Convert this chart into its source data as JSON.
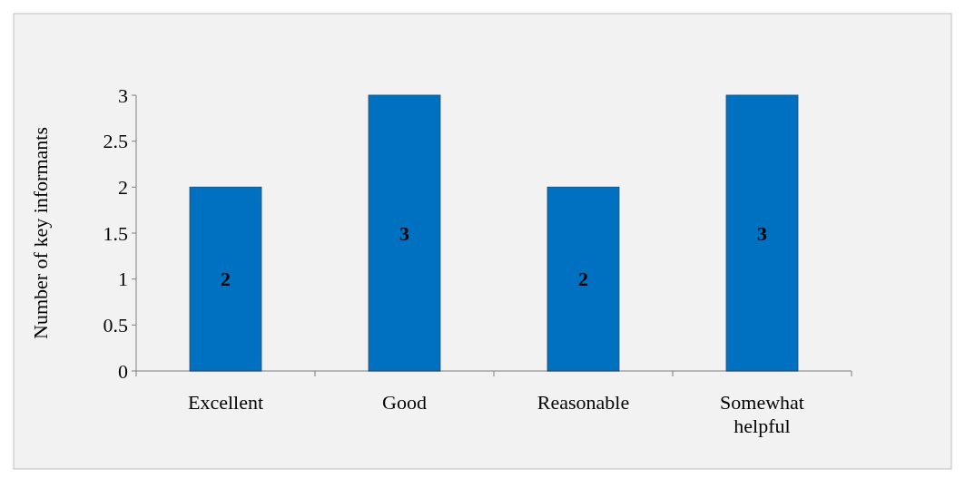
{
  "chart_data": {
    "type": "bar",
    "ylabel": "Number of key informants",
    "categories": [
      "Excellent",
      "Good",
      "Reasonable",
      "Somewhat helpful"
    ],
    "values": [
      2,
      3,
      2,
      3
    ],
    "color": "#0070c0",
    "ylim": [
      0,
      3
    ],
    "yticks": [
      0,
      0.5,
      1,
      1.5,
      2,
      2.5,
      3
    ],
    "grid": false,
    "data_labels": true
  }
}
